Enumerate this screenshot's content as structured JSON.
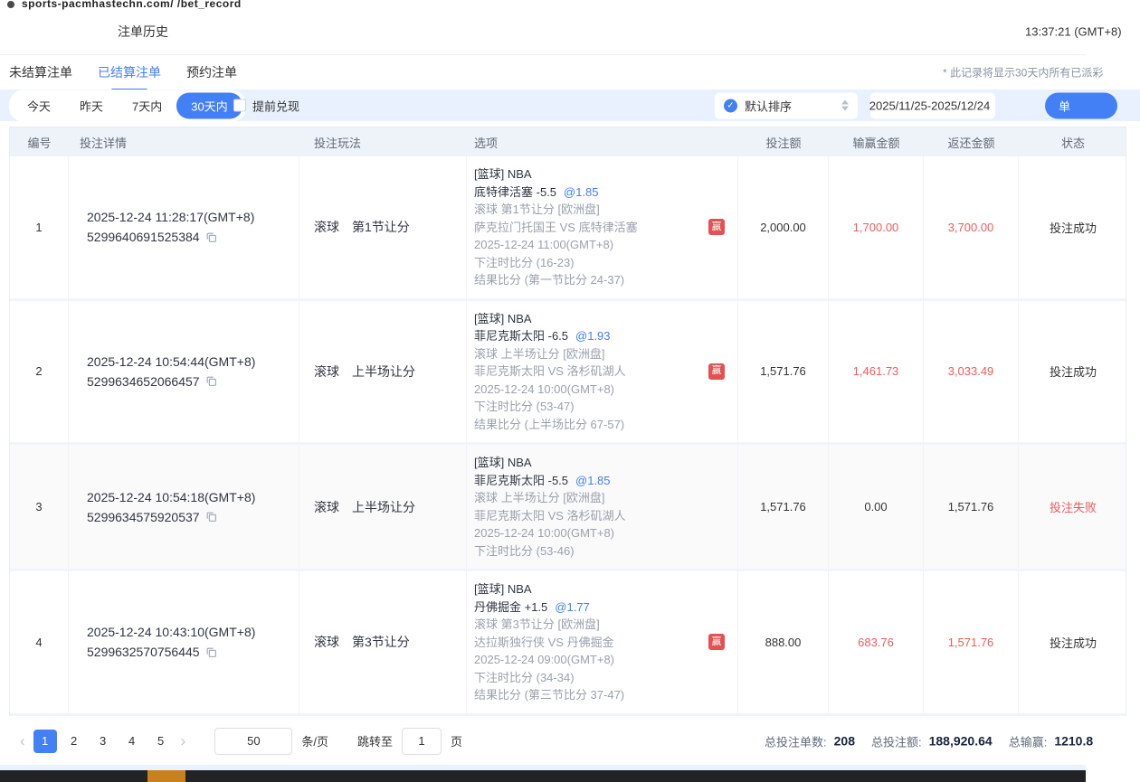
{
  "browser": {
    "tab_text": "sports-pacmhastechn.com/ /bet_record"
  },
  "header": {
    "title": "注单历史",
    "time": "13:37:21 (GMT+8)"
  },
  "tabs": [
    {
      "label": "未结算注单",
      "active": false
    },
    {
      "label": "已结算注单",
      "active": true
    },
    {
      "label": "预约注单",
      "active": false
    }
  ],
  "notice": "* 此记录将显示30天内所有已派彩",
  "filters": {
    "quick": [
      "今天",
      "昨天",
      "7天内",
      "30天内"
    ],
    "active_quick": "30天内",
    "early_cashout_label": "提前兑现",
    "early_cashout_checked": false,
    "sort_label": "默认排序",
    "date_range": "2025/11/25-2025/12/24",
    "action_button_label": "单"
  },
  "table": {
    "headers": [
      "编号",
      "投注详情",
      "投注玩法",
      "选项",
      "投注额",
      "输赢金额",
      "返还金额",
      "状态"
    ],
    "rows": [
      {
        "no": "1",
        "time": "2025-12-24 11:28:17(GMT+8)",
        "id": "5299640691525384",
        "play_mode": "滚球",
        "play_option": "第1节让分",
        "option": {
          "league": "[篮球] NBA",
          "pick": "底特律活塞 -5.5",
          "odds": "@1.85",
          "market": "滚球 第1节让分 [欧洲盘]",
          "match": "萨克拉门托国王 VS 底特律活塞",
          "badge": "赢",
          "match_time": "2025-12-24 11:00(GMT+8)",
          "bet_score": "下注时比分 (16-23)",
          "result_score": "结果比分 (第一节比分 24-37)"
        },
        "amount": "2,000.00",
        "win_loss": "1,700.00",
        "win_loss_red": true,
        "returned": "3,700.00",
        "returned_red": true,
        "status": "投注成功",
        "status_red": false,
        "highlight": false
      },
      {
        "no": "2",
        "time": "2025-12-24 10:54:44(GMT+8)",
        "id": "5299634652066457",
        "play_mode": "滚球",
        "play_option": "上半场让分",
        "option": {
          "league": "[篮球] NBA",
          "pick": "菲尼克斯太阳 -6.5",
          "odds": "@1.93",
          "market": "滚球 上半场让分 [欧洲盘]",
          "match": "菲尼克斯太阳 VS 洛杉矶湖人",
          "badge": "赢",
          "match_time": "2025-12-24 10:00(GMT+8)",
          "bet_score": "下注时比分 (53-47)",
          "result_score": "结果比分 (上半场比分 67-57)"
        },
        "amount": "1,571.76",
        "win_loss": "1,461.73",
        "win_loss_red": true,
        "returned": "3,033.49",
        "returned_red": true,
        "status": "投注成功",
        "status_red": false,
        "highlight": false
      },
      {
        "no": "3",
        "time": "2025-12-24 10:54:18(GMT+8)",
        "id": "5299634575920537",
        "play_mode": "滚球",
        "play_option": "上半场让分",
        "option": {
          "league": "[篮球] NBA",
          "pick": "菲尼克斯太阳 -5.5",
          "odds": "@1.85",
          "market": "滚球 上半场让分 [欧洲盘]",
          "match": "菲尼克斯太阳 VS 洛杉矶湖人",
          "badge": null,
          "match_time": "2025-12-24 10:00(GMT+8)",
          "bet_score": "下注时比分 (53-46)",
          "result_score": null
        },
        "amount": "1,571.76",
        "win_loss": "0.00",
        "win_loss_red": false,
        "returned": "1,571.76",
        "returned_red": false,
        "status": "投注失败",
        "status_red": true,
        "highlight": true
      },
      {
        "no": "4",
        "time": "2025-12-24 10:43:10(GMT+8)",
        "id": "5299632570756445",
        "play_mode": "滚球",
        "play_option": "第3节让分",
        "option": {
          "league": "[篮球] NBA",
          "pick": "丹佛掘金 +1.5",
          "odds": "@1.77",
          "market": "滚球 第3节让分 [欧洲盘]",
          "match": "达拉斯独行侠 VS 丹佛掘金",
          "badge": "赢",
          "match_time": "2025-12-24 09:00(GMT+8)",
          "bet_score": "下注时比分 (34-34)",
          "result_score": "结果比分 (第三节比分 37-47)"
        },
        "amount": "888.00",
        "win_loss": "683.76",
        "win_loss_red": true,
        "returned": "1,571.76",
        "returned_red": true,
        "status": "投注成功",
        "status_red": false,
        "highlight": false
      }
    ]
  },
  "pagination": {
    "pages": [
      "1",
      "2",
      "3",
      "4",
      "5"
    ],
    "active_page": "1",
    "page_size": "50",
    "page_size_label": "条/页",
    "jump_label": "跳转至",
    "jump_value": "1",
    "jump_suffix": "页"
  },
  "summary": {
    "count_label": "总投注单数:",
    "count": "208",
    "amount_label": "总投注额:",
    "amount": "188,920.64",
    "winloss_label": "总输赢:",
    "winloss": "1210.8"
  },
  "colors": {
    "accent": "#4380f5",
    "loss_red": "#ef5b5b",
    "badge_red": "#e25252",
    "filter_bg": "#e8f1fd"
  }
}
